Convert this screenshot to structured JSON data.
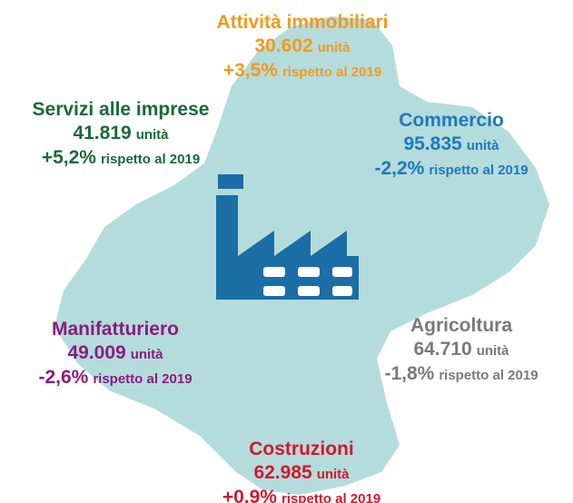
{
  "sectors": [
    {
      "name": "Attività immobiliari",
      "value": "30.602",
      "unit": "unità",
      "change": "+3,5%",
      "comparison": "rispetto al 2019"
    },
    {
      "name": "Servizi alle imprese",
      "value": "41.819",
      "unit": "unità",
      "change": "+5,2%",
      "comparison": "rispetto al 2019"
    },
    {
      "name": "Commercio",
      "value": "95.835",
      "unit": "unità",
      "change": "-2,2%",
      "comparison": "rispetto al 2019"
    },
    {
      "name": "Manifatturiero",
      "value": "49.009",
      "unit": "unità",
      "change": "-2,6%",
      "comparison": "rispetto al 2019"
    },
    {
      "name": "Agricoltura",
      "value": "64.710",
      "unit": "unità",
      "change": "-1,8%",
      "comparison": "rispetto al 2019"
    },
    {
      "name": "Costruzioni",
      "value": "62.985",
      "unit": "unità",
      "change": "+0,9%",
      "comparison": "rispetto al 2019"
    }
  ]
}
